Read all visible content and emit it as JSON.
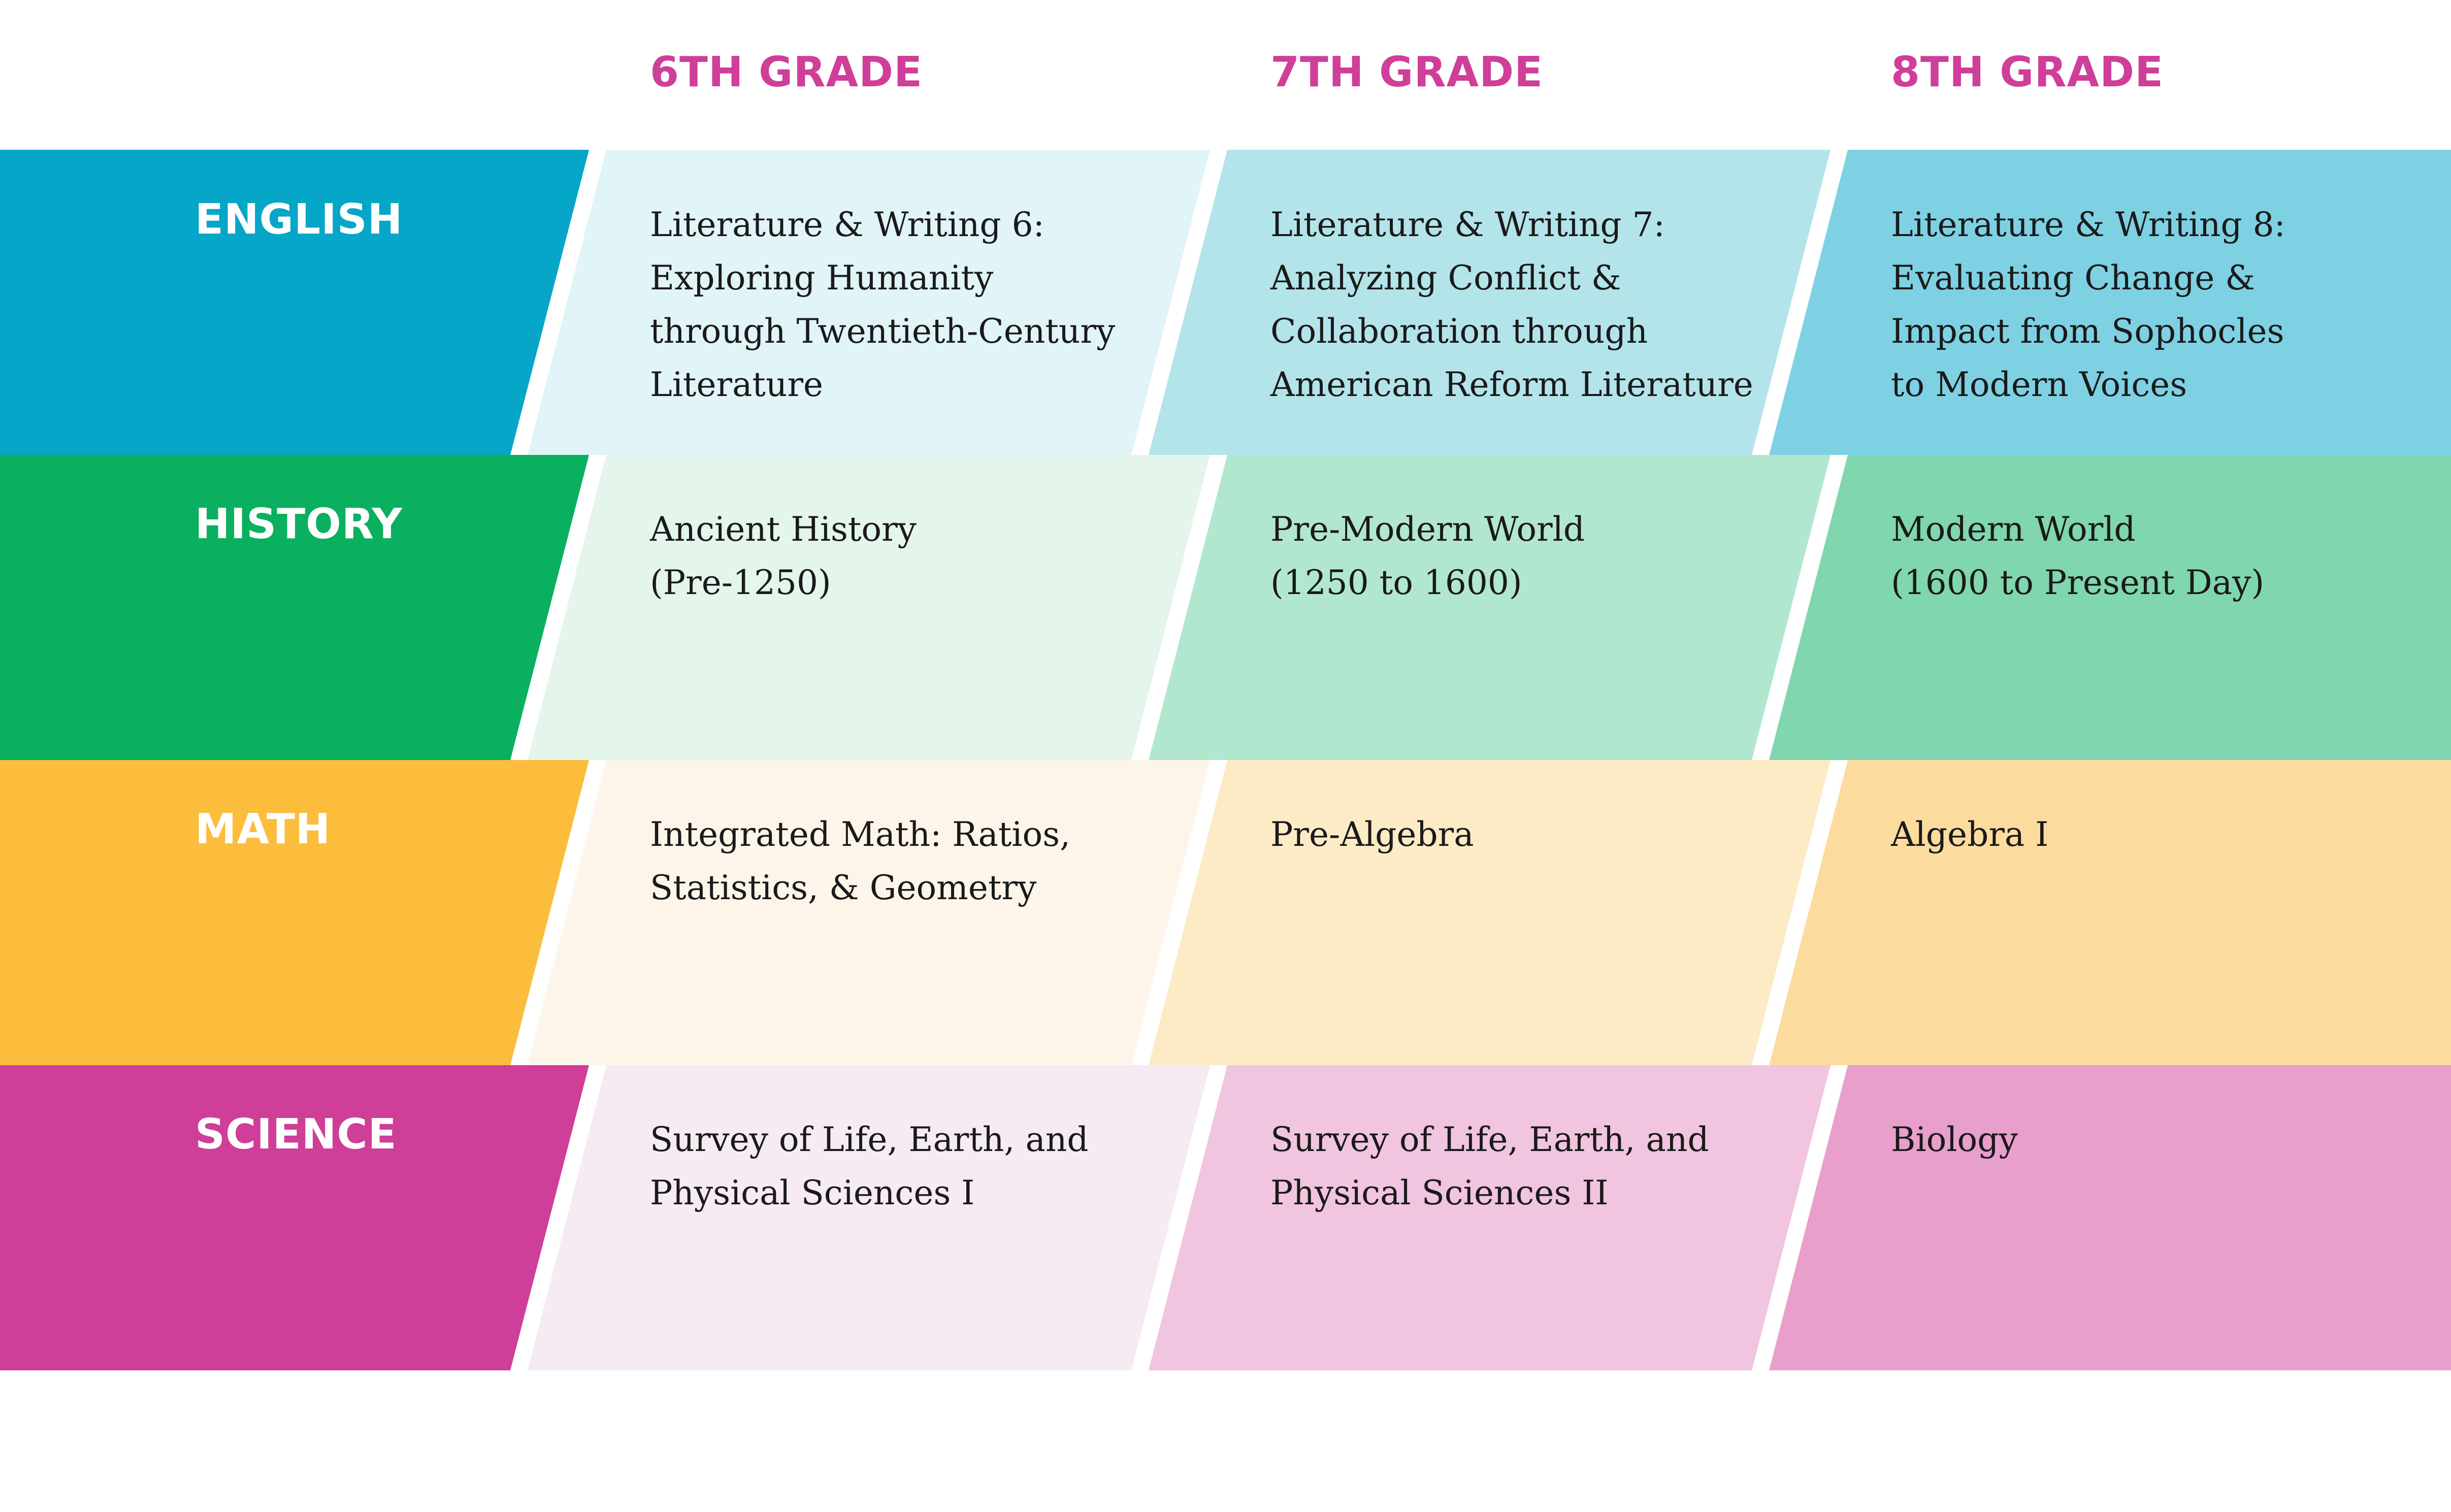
{
  "grades": [
    "6TH GRADE",
    "7TH GRADE",
    "8TH GRADE"
  ],
  "colors": {
    "header_text": "#cf3e98",
    "label_text": "#ffffff",
    "background": "#ffffff"
  },
  "rows": [
    {
      "subject": "ENGLISH",
      "label_color": "#06a6c8",
      "cell_colors": [
        "#e1f4f7",
        "#b3e4ea",
        "#7ed1e3"
      ],
      "courses": [
        "Literature & Writing 6:\nExploring Humanity\nthrough Twentieth-Century\nLiterature",
        "Literature & Writing 7:\nAnalyzing Conflict &\nCollaboration through\nAmerican Reform Literature",
        "Literature & Writing 8:\nEvaluating Change &\nImpact from Sophocles\nto Modern Voices"
      ]
    },
    {
      "subject": "HISTORY",
      "label_color": "#0ab05f",
      "cell_colors": [
        "#e4f5ec",
        "#b2e7cf",
        "#80d6ae"
      ],
      "courses": [
        "Ancient History\n(Pre-1250)",
        "Pre-Modern World\n(1250 to 1600)",
        "Modern World\n(1600 to Present Day)"
      ]
    },
    {
      "subject": "MATH",
      "label_color": "#fcbc3c",
      "cell_colors": [
        "#fdf5ea",
        "#fdebc6",
        "#fcdc9e"
      ],
      "courses": [
        "Integrated Math: Ratios,\nStatistics, & Geometry",
        "Pre-Algebra",
        "Algebra I"
      ]
    },
    {
      "subject": "SCIENCE",
      "label_color": "#cf3e98",
      "cell_colors": [
        "#f6eaf3",
        "#f1c4df",
        "#e89fcc"
      ],
      "courses": [
        "Survey of Life, Earth, and\nPhysical Sciences I",
        "Survey of Life, Earth, and\nPhysical Sciences II",
        "Biology"
      ]
    }
  ]
}
